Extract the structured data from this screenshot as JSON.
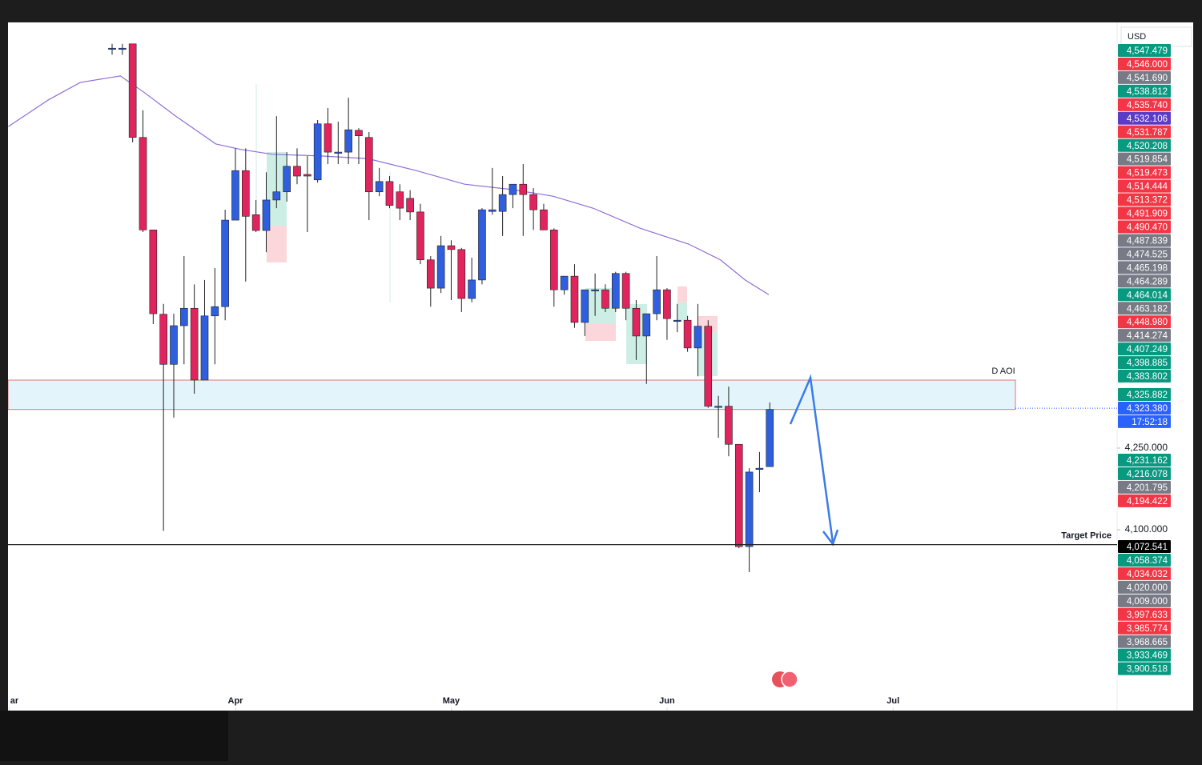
{
  "chart_data": {
    "type": "candlestick",
    "currency": "USD",
    "ylim": [
      3767.6,
      5032.4
    ],
    "yticks": [
      {
        "value": 4250,
        "label": "4,250.000"
      },
      {
        "value": 4100,
        "label": "4,100.000"
      }
    ],
    "xlim": [
      -10.13,
      97.8
    ],
    "xticks": [
      {
        "value": -10,
        "label": "ar"
      },
      {
        "value": 12,
        "label": "Apr"
      },
      {
        "value": 33,
        "label": "May"
      },
      {
        "value": 54,
        "label": "Jun"
      },
      {
        "value": 76,
        "label": "Jul"
      }
    ],
    "up_color": "#2f5fdc",
    "down_color": "#e0245e",
    "open": [
      4985,
      4985,
      4993,
      4821,
      4651,
      4496,
      4404,
      4475,
      4507,
      4375,
      4493,
      4510,
      4669,
      4760,
      4679,
      4650,
      4706,
      4721,
      4768,
      4753,
      4743,
      4846,
      4794,
      4794,
      4834,
      4821,
      4721,
      4740,
      4721,
      4709,
      4684,
      4596,
      4544,
      4622,
      4615,
      4525,
      4559,
      4685,
      4685,
      4716,
      4735,
      4716,
      4688,
      4651,
      4541,
      4566,
      4481,
      4541,
      4541,
      4507,
      4571,
      4507,
      4456,
      4497,
      4541,
      4485,
      4485,
      4434,
      4474,
      4327,
      4327,
      4257,
      4069,
      4213,
      4216
    ],
    "high": [
      4993,
      4993,
      4993,
      4871,
      4651,
      4515,
      4497,
      4603,
      4551,
      4559,
      4581,
      4688,
      4801,
      4801,
      4706,
      4757,
      4860,
      4794,
      4801,
      4787,
      4853,
      4875,
      4850,
      4894,
      4838,
      4831,
      4765,
      4750,
      4735,
      4724,
      4699,
      4603,
      4640,
      4632,
      4618,
      4600,
      4691,
      4765,
      4750,
      4735,
      4772,
      4728,
      4699,
      4654,
      4566,
      4588,
      4541,
      4571,
      4551,
      4574,
      4574,
      4522,
      4497,
      4603,
      4544,
      4515,
      4493,
      4515,
      4485,
      4346,
      4363,
      4257,
      4213,
      4243,
      4334
    ],
    "low": [
      4973,
      4973,
      4812,
      4647,
      4478,
      4098,
      4306,
      4404,
      4350,
      4375,
      4404,
      4485,
      4669,
      4556,
      4647,
      4610,
      4691,
      4703,
      4735,
      4647,
      4738,
      4772,
      4772,
      4772,
      4772,
      4669,
      4713,
      4691,
      4669,
      4669,
      4588,
      4510,
      4535,
      4522,
      4500,
      4518,
      4551,
      4679,
      4640,
      4691,
      4640,
      4651,
      4651,
      4510,
      4532,
      4471,
      4456,
      4493,
      4500,
      4500,
      4485,
      4412,
      4368,
      4485,
      4449,
      4463,
      4427,
      4382,
      4324,
      4269,
      4235,
      4066,
      4022,
      4169,
      4216
    ],
    "close": [
      4985,
      4985,
      4821,
      4651,
      4497,
      4404,
      4475,
      4507,
      4375,
      4493,
      4510,
      4669,
      4760,
      4676,
      4650,
      4706,
      4721,
      4768,
      4750,
      4750,
      4846,
      4794,
      4794,
      4835,
      4824,
      4721,
      4740,
      4696,
      4691,
      4684,
      4596,
      4544,
      4622,
      4615,
      4525,
      4559,
      4688,
      4688,
      4716,
      4735,
      4716,
      4688,
      4651,
      4541,
      4566,
      4481,
      4541,
      4541,
      4507,
      4571,
      4507,
      4456,
      4497,
      4541,
      4488,
      4485,
      4434,
      4474,
      4327,
      4327,
      4257,
      4069,
      4206,
      4213,
      4321
    ],
    "moving_average": {
      "color": "#8f6fd6",
      "x": [
        -10.1,
        -6.2,
        -3.1,
        0.8,
        3.1,
        6.2,
        10.1,
        12.5,
        15.6,
        20.3,
        24.9,
        29.6,
        34.3,
        39.0,
        42.9,
        46.8,
        51.4,
        56.1,
        59.2,
        61.6,
        63.9
      ],
      "values": [
        4841,
        4890,
        4922,
        4934,
        4904,
        4860,
        4809,
        4799,
        4790,
        4787,
        4782,
        4760,
        4735,
        4725,
        4713,
        4691,
        4654,
        4625,
        4596,
        4559,
        4532
      ]
    },
    "zone": {
      "label": "D AOI",
      "low": 4321,
      "high": 4375
    },
    "target": {
      "name": "Target Price",
      "value": 4072.541
    },
    "last_price": 4323.38,
    "price_labels": [
      [
        {
          "label": "4,547.479",
          "color": "#089981"
        },
        {
          "label": "4,546.000",
          "color": "#f23645"
        },
        {
          "label": "4,541.690",
          "color": "#787b86"
        },
        {
          "label": "4,538.812",
          "color": "#089981"
        },
        {
          "label": "4,535.740",
          "color": "#f23645"
        },
        {
          "label": "4,532.106",
          "color": "#5b3cc4"
        },
        {
          "label": "4,531.787",
          "color": "#f23645"
        },
        {
          "label": "4,520.208",
          "color": "#089981"
        },
        {
          "label": "4,519.854",
          "color": "#787b86"
        },
        {
          "label": "4,519.473",
          "color": "#f23645"
        },
        {
          "label": "4,514.444",
          "color": "#f23645"
        },
        {
          "label": "4,513.372",
          "color": "#f23645"
        },
        {
          "label": "4,491.909",
          "color": "#f23645"
        },
        {
          "label": "4,490.470",
          "color": "#f23645"
        },
        {
          "label": "4,487.839",
          "color": "#787b86"
        },
        {
          "label": "4,474.525",
          "color": "#787b86"
        },
        {
          "label": "4,465.198",
          "color": "#787b86"
        },
        {
          "label": "4,464.289",
          "color": "#787b86"
        },
        {
          "label": "4,464.014",
          "color": "#089981"
        },
        {
          "label": "4,463.182",
          "color": "#787b86"
        },
        {
          "label": "4,448.980",
          "color": "#f23645"
        },
        {
          "label": "4,414.274",
          "color": "#787b86"
        },
        {
          "label": "4,407.249",
          "color": "#089981"
        },
        {
          "label": "4,398.885",
          "color": "#089981"
        },
        {
          "label": "4,383.802",
          "color": "#089981"
        }
      ],
      [
        {
          "label": "4,325.882",
          "color": "#089981"
        },
        {
          "label": "4,323.380",
          "color": "#2962ff"
        },
        {
          "label": "17:52:18",
          "color": "#2962ff"
        }
      ],
      [
        {
          "label": "4,231.162",
          "color": "#089981"
        },
        {
          "label": "4,216.078",
          "color": "#089981"
        },
        {
          "label": "4,201.795",
          "color": "#787b86"
        },
        {
          "label": "4,194.422",
          "color": "#f23645"
        }
      ],
      [
        {
          "label": "4,072.541",
          "color": "#000000"
        },
        {
          "label": "4,058.374",
          "color": "#089981"
        },
        {
          "label": "4,034.032",
          "color": "#f23645"
        },
        {
          "label": "4,020.000",
          "color": "#787b86"
        },
        {
          "label": "4,009.000",
          "color": "#787b86"
        },
        {
          "label": "3,997.633",
          "color": "#f23645"
        },
        {
          "label": "3,985.774",
          "color": "#f23645"
        },
        {
          "label": "3,968.665",
          "color": "#787b86"
        },
        {
          "label": "3,933.469",
          "color": "#089981"
        },
        {
          "label": "3,900.518",
          "color": "#089981"
        }
      ]
    ]
  }
}
